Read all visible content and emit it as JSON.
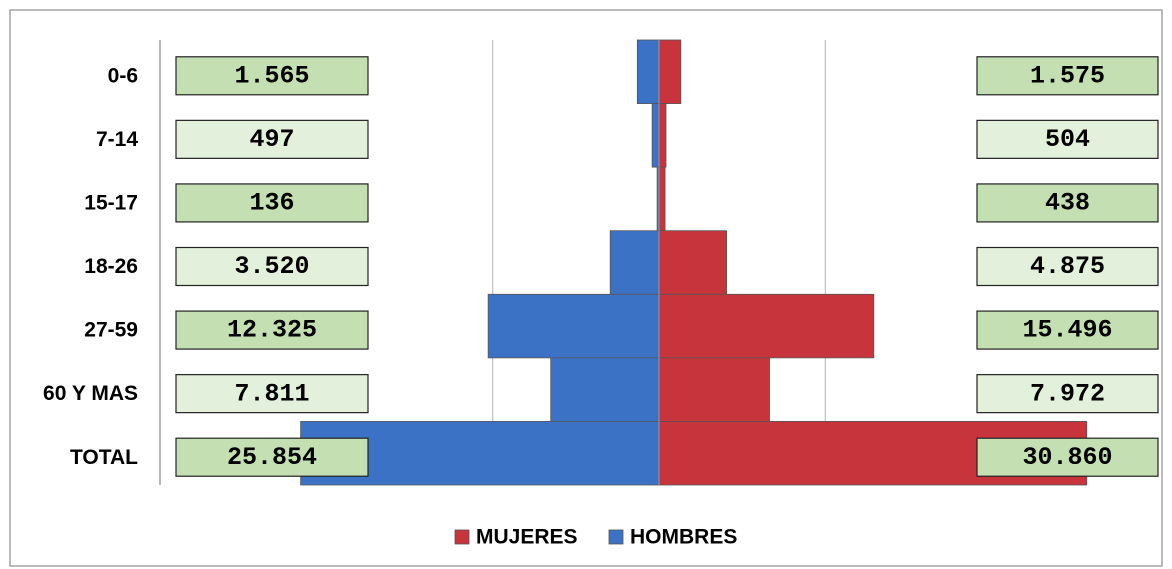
{
  "chart_data": {
    "type": "pyramid",
    "categories": [
      "0-6",
      "7-14",
      "15-17",
      "18-26",
      "27-59",
      "60 Y MAS",
      "TOTAL"
    ],
    "series": [
      {
        "name": "MUJERES",
        "color": "#c8343b",
        "side": "right",
        "values": [
          1575,
          504,
          438,
          4875,
          15496,
          7972,
          30860
        ],
        "value_labels": [
          "1.575",
          "504",
          "438",
          "4.875",
          "15.496",
          "7.972",
          "30.860"
        ]
      },
      {
        "name": "HOMBRES",
        "color": "#3c72c6",
        "side": "left",
        "values": [
          1565,
          497,
          136,
          3520,
          12325,
          7811,
          25854
        ],
        "value_labels": [
          "1.565",
          "497",
          "136",
          "3.520",
          "12.325",
          "7.811",
          "25.854"
        ]
      }
    ],
    "xlim": [
      -36000,
      36000
    ],
    "xticks": [
      -36000,
      -12000,
      0,
      12000
    ],
    "grid": true,
    "legend": "bottom"
  }
}
